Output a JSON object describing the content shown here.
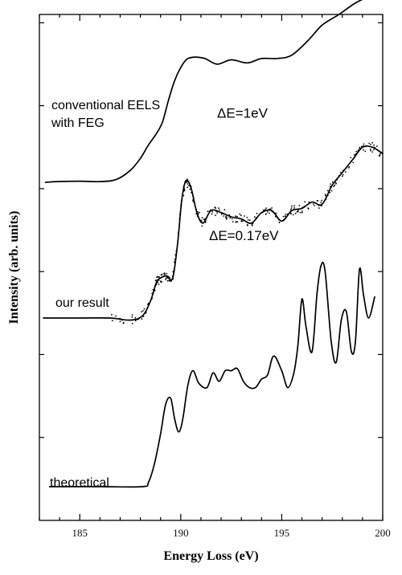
{
  "chart_data": {
    "type": "line",
    "xlabel": "Energy Loss (eV)",
    "ylabel": "Intensity (arb. units)",
    "xlim": [
      183,
      200
    ],
    "ylim": [
      0,
      12
    ],
    "x_ticks": [
      185,
      190,
      195,
      200
    ],
    "y_tick_count": 6,
    "grid": false,
    "series": [
      {
        "name": "conventional EELS with FEG",
        "label_lines": [
          "conventional EELS",
          "with FEG"
        ],
        "x": [
          183.3,
          184,
          185,
          186,
          186.8,
          187.5,
          188,
          188.4,
          188.8,
          189.1,
          189.4,
          189.7,
          190.0,
          190.3,
          190.7,
          191.2,
          191.8,
          192.5,
          193.3,
          194.0,
          194.8,
          195.5,
          196.3,
          197.0,
          197.8,
          198.6,
          199.3,
          200.0
        ],
        "y": [
          8.05,
          8.05,
          8.02,
          8.05,
          8.1,
          8.3,
          8.6,
          8.9,
          9.2,
          9.5,
          9.95,
          10.4,
          10.75,
          10.95,
          10.95,
          10.9,
          10.85,
          10.9,
          10.9,
          10.95,
          11.0,
          11.05,
          11.4,
          11.75,
          12.0,
          12.3,
          12.45,
          12.5
        ]
      },
      {
        "name": "our result",
        "x": [
          183.2,
          185.0,
          186.5,
          187.5,
          188.1,
          188.5,
          188.8,
          189.0,
          189.3,
          189.6,
          189.85,
          190.05,
          190.25,
          190.5,
          190.8,
          191.1,
          191.5,
          192.0,
          192.5,
          193.0,
          193.5,
          194.0,
          194.5,
          195.0,
          195.5,
          196.0,
          196.5,
          197.0,
          197.5,
          198.0,
          198.5,
          199.0,
          199.5,
          200.0
        ],
        "y": [
          4.8,
          4.8,
          4.8,
          4.75,
          4.85,
          5.2,
          5.65,
          5.75,
          5.8,
          5.75,
          6.6,
          7.6,
          8.05,
          7.9,
          7.3,
          7.05,
          7.35,
          7.3,
          7.2,
          7.15,
          7.05,
          7.3,
          7.35,
          7.1,
          7.35,
          7.4,
          7.55,
          7.5,
          7.95,
          8.25,
          8.55,
          8.85,
          8.85,
          8.7
        ]
      },
      {
        "name": "theoretical",
        "x": [
          183.5,
          186.0,
          188.1,
          188.4,
          188.7,
          189.0,
          189.25,
          189.5,
          189.7,
          189.9,
          190.1,
          190.35,
          190.6,
          190.9,
          191.3,
          191.6,
          191.9,
          192.2,
          192.5,
          192.8,
          193.1,
          193.4,
          193.7,
          194.0,
          194.3,
          194.6,
          195.0,
          195.3,
          195.6,
          195.8,
          196.0,
          196.2,
          196.5,
          196.75,
          196.95,
          197.15,
          197.45,
          197.7,
          197.95,
          198.2,
          198.45,
          198.65,
          198.85,
          199.05,
          199.3,
          199.6
        ],
        "y": [
          0.8,
          0.8,
          0.8,
          0.9,
          1.35,
          2.05,
          2.75,
          2.9,
          2.4,
          2.1,
          2.4,
          3.2,
          3.55,
          3.25,
          3.15,
          3.5,
          3.3,
          3.55,
          3.55,
          3.6,
          3.3,
          3.15,
          3.15,
          3.35,
          3.45,
          3.9,
          3.55,
          3.15,
          3.5,
          4.15,
          5.25,
          4.6,
          4.0,
          5.4,
          6.05,
          5.9,
          4.25,
          3.75,
          4.75,
          4.95,
          4.0,
          4.25,
          5.95,
          5.35,
          4.8,
          5.3
        ]
      }
    ],
    "annotations": [
      {
        "text": "ΔE=1eV",
        "x": 191.8,
        "y": 9.55
      },
      {
        "text": "ΔE=0.17eV",
        "x": 191.4,
        "y": 6.65
      }
    ]
  }
}
